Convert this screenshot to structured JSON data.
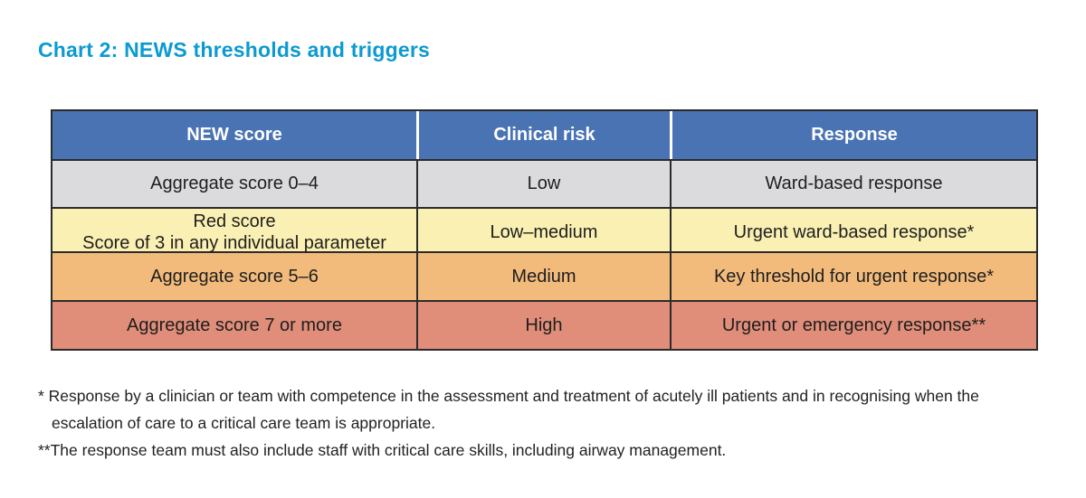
{
  "title": "Chart 2: NEWS thresholds and triggers",
  "colors": {
    "title_text": "#0c9ad2",
    "header_bg": "#4a73b4",
    "header_text": "#ffffff",
    "row_low_bg": "#dbdbdd",
    "row_low_medium_bg": "#faf0b3",
    "row_medium_bg": "#f2bb7c",
    "row_high_bg": "#e08d7a",
    "border": "#2b2b2b",
    "cell_text": "#1e1e1e"
  },
  "chart_data": {
    "type": "table",
    "title": "Chart 2: NEWS thresholds and triggers",
    "columns": [
      "NEW score",
      "Clinical risk",
      "Response"
    ],
    "rows": [
      [
        "Aggregate score 0–4",
        "Low",
        "Ward-based response"
      ],
      [
        "Red score\nScore of 3 in any individual parameter",
        "Low–medium",
        "Urgent ward-based response*"
      ],
      [
        "Aggregate score 5–6",
        "Medium",
        "Key threshold for urgent response*"
      ],
      [
        "Aggregate score 7 or more",
        "High",
        "Urgent or emergency response**"
      ]
    ],
    "row_colors": [
      "#dbdbdd",
      "#faf0b3",
      "#f2bb7c",
      "#e08d7a"
    ],
    "header_color": "#4a73b4"
  },
  "footnotes": [
    "* Response by a clinician or team with competence in the assessment and treatment of acutely ill patients and in recognising when the escalation of care to a critical care team is appropriate.",
    "**The response team must also include staff with critical care skills, including airway management."
  ]
}
